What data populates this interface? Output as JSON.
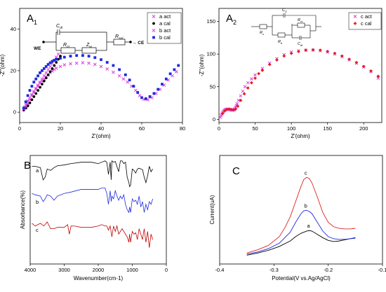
{
  "colors": {
    "pink": "#e040e0",
    "black": "#000000",
    "blue": "#1f2ae0",
    "red": "#e02020",
    "dark_red": "#c00000"
  },
  "chart_data": [
    {
      "panel": "A1",
      "panel_label": "A",
      "panel_sub": "1",
      "type": "scatter",
      "xlabel": "Z'(ohm)",
      "ylabel": "-Z''(ohm)",
      "xlim": [
        0,
        80
      ],
      "ylim": [
        -5,
        50
      ],
      "xticks": [
        0,
        20,
        40,
        60,
        80
      ],
      "yticks": [
        0,
        20,
        40
      ],
      "legend_position": "top-right",
      "circuit": {
        "labels": [
          "C_dl",
          "WE",
          "R_ct",
          "Z_w",
          "R_sol",
          "CE"
        ]
      },
      "series": [
        {
          "name": "a act",
          "marker": "x",
          "color": "#e040e0",
          "x": [
            3,
            4,
            5,
            6,
            7,
            8,
            9,
            10,
            11,
            12,
            13,
            14,
            15,
            16,
            17,
            18,
            20,
            22,
            25,
            28,
            31,
            34,
            37,
            40,
            43,
            46,
            49,
            51,
            53,
            55,
            57,
            59,
            61,
            63,
            65,
            67,
            69,
            71,
            73,
            75,
            77
          ],
          "y": [
            2,
            4,
            6,
            8,
            9.5,
            11,
            12.5,
            14,
            15,
            16,
            17,
            18,
            19,
            19.8,
            20.5,
            21.2,
            22,
            22.8,
            23.3,
            23.6,
            23.8,
            23.6,
            23,
            22,
            20.8,
            19.2,
            17.5,
            16,
            14.5,
            12.5,
            10.5,
            8,
            6.2,
            6,
            7,
            9,
            11,
            13,
            15.5,
            17.5,
            19.5
          ]
        },
        {
          "name": "a cal",
          "marker": "dot",
          "color": "#000000",
          "x": [
            2,
            3,
            4,
            5,
            6,
            7,
            8,
            9,
            10,
            11,
            12,
            13,
            14,
            15,
            16,
            17,
            18,
            19,
            20
          ],
          "y": [
            1,
            2,
            3,
            4.5,
            6,
            7.5,
            9,
            10.5,
            12,
            13.5,
            15,
            16.5,
            18,
            19.5,
            21,
            22.5,
            24,
            25.5,
            27
          ]
        },
        {
          "name": "b act",
          "marker": "x",
          "color": "#e040e0",
          "x": [
            2,
            2.5,
            3,
            3.5,
            4,
            5,
            6,
            7,
            8,
            9,
            10,
            11,
            12,
            13,
            14,
            15,
            16,
            17,
            18,
            19
          ],
          "y": [
            1.5,
            2.5,
            3.5,
            4.5,
            5.5,
            7,
            8.5,
            10,
            11.5,
            13,
            14.5,
            16,
            17.5,
            19,
            20.5,
            22,
            23.5,
            25,
            26.5,
            28
          ]
        },
        {
          "name": "b cal",
          "marker": "square",
          "color": "#1f2ae0",
          "x": [
            2,
            3,
            4,
            5,
            6,
            7,
            8,
            9,
            10,
            11,
            12,
            13,
            14,
            15,
            16,
            17,
            18,
            20,
            22,
            25,
            28,
            31,
            34,
            37,
            40,
            43,
            46,
            49,
            52,
            54,
            56,
            58,
            60,
            62,
            64,
            66,
            68,
            70,
            72,
            74,
            76,
            78
          ],
          "y": [
            2,
            5,
            8,
            10.5,
            12.5,
            14.5,
            16,
            17.5,
            19,
            20,
            21,
            22,
            23,
            23.8,
            24.5,
            25,
            25.5,
            26,
            26.5,
            27,
            27.3,
            27.3,
            27,
            26.3,
            25.3,
            24,
            22.5,
            20.5,
            18,
            15.5,
            12.5,
            9.5,
            7,
            6.5,
            7.5,
            9,
            11,
            13.5,
            16,
            18.5,
            20.5,
            22.5
          ]
        }
      ]
    },
    {
      "panel": "A2",
      "panel_label": "A",
      "panel_sub": "2",
      "type": "scatter",
      "xlabel": "Z'(ohm)",
      "ylabel": "-Z''(ohm)",
      "xlim": [
        0,
        225
      ],
      "ylim": [
        -5,
        170
      ],
      "xticks": [
        0,
        50,
        100,
        150,
        200
      ],
      "yticks": [
        0,
        50,
        100,
        150
      ],
      "legend_position": "top-right",
      "circuit": {
        "labels": [
          "C_1",
          "R_ct",
          "R_s",
          "R_b",
          "C_dl"
        ]
      },
      "series": [
        {
          "name": "c act",
          "marker": "x",
          "color": "#e040e0",
          "x": [
            2,
            3,
            4,
            5,
            6,
            7,
            8,
            9,
            10,
            11,
            12,
            13,
            14,
            15,
            16,
            17,
            18,
            19,
            20,
            21,
            22,
            23,
            24,
            25,
            27,
            30,
            33,
            36,
            40,
            45,
            50,
            60,
            70,
            80,
            90,
            100,
            110,
            120,
            130,
            140,
            150,
            160,
            170,
            180,
            190,
            200,
            210,
            220
          ],
          "y": [
            3,
            6,
            8,
            10,
            11.5,
            13,
            14,
            14.8,
            15.2,
            15.5,
            15.6,
            15.5,
            15.3,
            15,
            14.6,
            14.3,
            14,
            14,
            14.3,
            15,
            16.5,
            18.5,
            21,
            24,
            29,
            36,
            43,
            50,
            56,
            62,
            68,
            78,
            86,
            93,
            99,
            103,
            105,
            106,
            106,
            105,
            103,
            100,
            96,
            91,
            86,
            80,
            73,
            63
          ]
        },
        {
          "name": "c cal",
          "marker": "diamond",
          "color": "#e02020",
          "x": [
            5,
            8,
            11,
            14,
            17,
            20,
            23,
            26,
            30,
            35,
            40,
            45,
            50,
            55,
            60,
            70,
            80,
            90,
            100,
            110,
            120,
            130,
            140,
            150,
            160,
            170,
            180,
            190,
            200,
            210,
            220
          ],
          "y": [
            9,
            13,
            15,
            15.5,
            15,
            14.5,
            15.5,
            20,
            29,
            39,
            48,
            56,
            63,
            70,
            75,
            84,
            91,
            97,
            101,
            104,
            106,
            106.5,
            106,
            104,
            101,
            97,
            92,
            87,
            81,
            74,
            66
          ]
        }
      ]
    },
    {
      "panel": "B",
      "panel_label": "B",
      "type": "line",
      "xlabel": "Wavenumber(cm-1)",
      "ylabel": "Absorbance(%)",
      "xlim": [
        4000,
        0
      ],
      "xticks": [
        4000,
        3000,
        2000,
        1000,
        0
      ],
      "series_labels": [
        "a",
        "b",
        "c"
      ],
      "series": [
        {
          "name": "a",
          "color": "#000000",
          "x": [
            3950,
            3850,
            3700,
            3620,
            3560,
            3500,
            3400,
            3300,
            3200,
            3000,
            2800,
            2500,
            2200,
            2000,
            1900,
            1800,
            1750,
            1700,
            1650,
            1620,
            1600,
            1550,
            1500,
            1400,
            1350,
            1300,
            1250,
            1200,
            1150,
            1100,
            1080,
            1050,
            1000,
            950,
            900,
            850,
            800,
            750,
            700,
            650,
            600,
            550,
            500,
            450,
            400
          ],
          "y": [
            10,
            10,
            9.5,
            5,
            6,
            9,
            8.5,
            9.5,
            10.2,
            10.5,
            11,
            11.5,
            11.5,
            11,
            11.5,
            12,
            11.5,
            7,
            11.5,
            5,
            12,
            11.5,
            11.8,
            8,
            12,
            12,
            11,
            11.5,
            6,
            4,
            2.5,
            3,
            9,
            8.5,
            7.5,
            9,
            9.3,
            9,
            8.8,
            6,
            4,
            6.5,
            10,
            8,
            9
          ]
        },
        {
          "name": "b",
          "color": "#1f2ae0",
          "x": [
            3950,
            3850,
            3700,
            3620,
            3560,
            3500,
            3400,
            3300,
            3200,
            3000,
            2800,
            2500,
            2200,
            2000,
            1900,
            1800,
            1750,
            1700,
            1650,
            1620,
            1600,
            1550,
            1500,
            1450,
            1400,
            1350,
            1300,
            1250,
            1200,
            1150,
            1100,
            1080,
            1050,
            1000,
            950,
            900,
            850,
            800,
            750,
            700,
            650,
            600,
            550,
            500,
            450,
            400
          ],
          "y": [
            0,
            -0.5,
            -1,
            -3,
            -2,
            -0.5,
            -1,
            -2.5,
            -1,
            0,
            0.5,
            1.5,
            1.5,
            1.5,
            2,
            2,
            0,
            -4,
            1,
            -3,
            -1,
            -2,
            1,
            -1,
            -2.5,
            -1,
            -2,
            -0.5,
            -4,
            -6,
            -7,
            -5,
            -7,
            -2,
            -3,
            -2.5,
            -4,
            -1,
            -5,
            -3,
            -7,
            -4,
            -6,
            -3,
            -4,
            -2
          ]
        },
        {
          "name": "c",
          "color": "#c00000",
          "x": [
            3950,
            3850,
            3700,
            3600,
            3500,
            3400,
            3300,
            3200,
            3000,
            2900,
            2850,
            2800,
            2700,
            2500,
            2200,
            2000,
            1900,
            1800,
            1750,
            1700,
            1650,
            1600,
            1550,
            1500,
            1450,
            1400,
            1350,
            1300,
            1250,
            1200,
            1150,
            1100,
            1080,
            1050,
            1000,
            950,
            900,
            850,
            800,
            750,
            700,
            650,
            600,
            550,
            500,
            450,
            400
          ],
          "y": [
            -11,
            -12,
            -11,
            -12,
            -10.5,
            -13,
            -13,
            -12.5,
            -12.5,
            -11.5,
            -15,
            -12,
            -12,
            -12.5,
            -12.5,
            -12,
            -11.5,
            -12,
            -12,
            -13.5,
            -12,
            -16,
            -12,
            -14,
            -12,
            -15,
            -14,
            -13,
            -14,
            -15,
            -16,
            -18,
            -15,
            -18,
            -14,
            -15,
            -14.5,
            -17,
            -13,
            -15,
            -17,
            -13,
            -18,
            -14,
            -20,
            -15,
            -17
          ]
        }
      ]
    },
    {
      "panel": "C",
      "panel_label": "C",
      "type": "line",
      "xlabel": "Potential(V vs.Ag/AgCl)",
      "ylabel": "Current(uA)",
      "xlim": [
        -0.4,
        -0.1
      ],
      "xticks": [
        -0.4,
        -0.3,
        -0.2,
        -0.1
      ],
      "series_labels": [
        "a",
        "b",
        "c"
      ],
      "series": [
        {
          "name": "a",
          "color": "#000000",
          "x": [
            -0.35,
            -0.33,
            -0.31,
            -0.29,
            -0.27,
            -0.26,
            -0.25,
            -0.24,
            -0.235,
            -0.23,
            -0.22,
            -0.21,
            -0.2,
            -0.19,
            -0.18,
            -0.17,
            -0.16,
            -0.15
          ],
          "y": [
            0.1,
            0.3,
            0.55,
            0.9,
            1.4,
            1.8,
            2.1,
            2.3,
            2.35,
            2.3,
            2.0,
            1.7,
            1.45,
            1.35,
            1.4,
            1.5,
            1.6,
            1.7
          ]
        },
        {
          "name": "b",
          "color": "#1f2ae0",
          "x": [
            -0.35,
            -0.33,
            -0.31,
            -0.29,
            -0.27,
            -0.26,
            -0.25,
            -0.245,
            -0.24,
            -0.235,
            -0.23,
            -0.22,
            -0.21,
            -0.2,
            -0.19,
            -0.18,
            -0.17,
            -0.16,
            -0.15
          ],
          "y": [
            0.2,
            0.4,
            0.7,
            1.2,
            2.2,
            3.1,
            3.9,
            4.15,
            4.2,
            4.1,
            3.9,
            3.1,
            2.3,
            1.8,
            1.6,
            1.55,
            1.55,
            1.6,
            1.65
          ]
        },
        {
          "name": "c",
          "color": "#e02020",
          "x": [
            -0.35,
            -0.33,
            -0.31,
            -0.29,
            -0.28,
            -0.27,
            -0.26,
            -0.25,
            -0.245,
            -0.24,
            -0.235,
            -0.23,
            -0.22,
            -0.21,
            -0.2,
            -0.19,
            -0.18,
            -0.17,
            -0.16,
            -0.15
          ],
          "y": [
            0.3,
            0.6,
            1.0,
            1.8,
            2.6,
            3.6,
            5.0,
            6.4,
            7.0,
            7.2,
            7.1,
            6.7,
            5.4,
            4.0,
            3.1,
            2.7,
            2.55,
            2.5,
            2.5,
            2.55
          ]
        }
      ]
    }
  ]
}
